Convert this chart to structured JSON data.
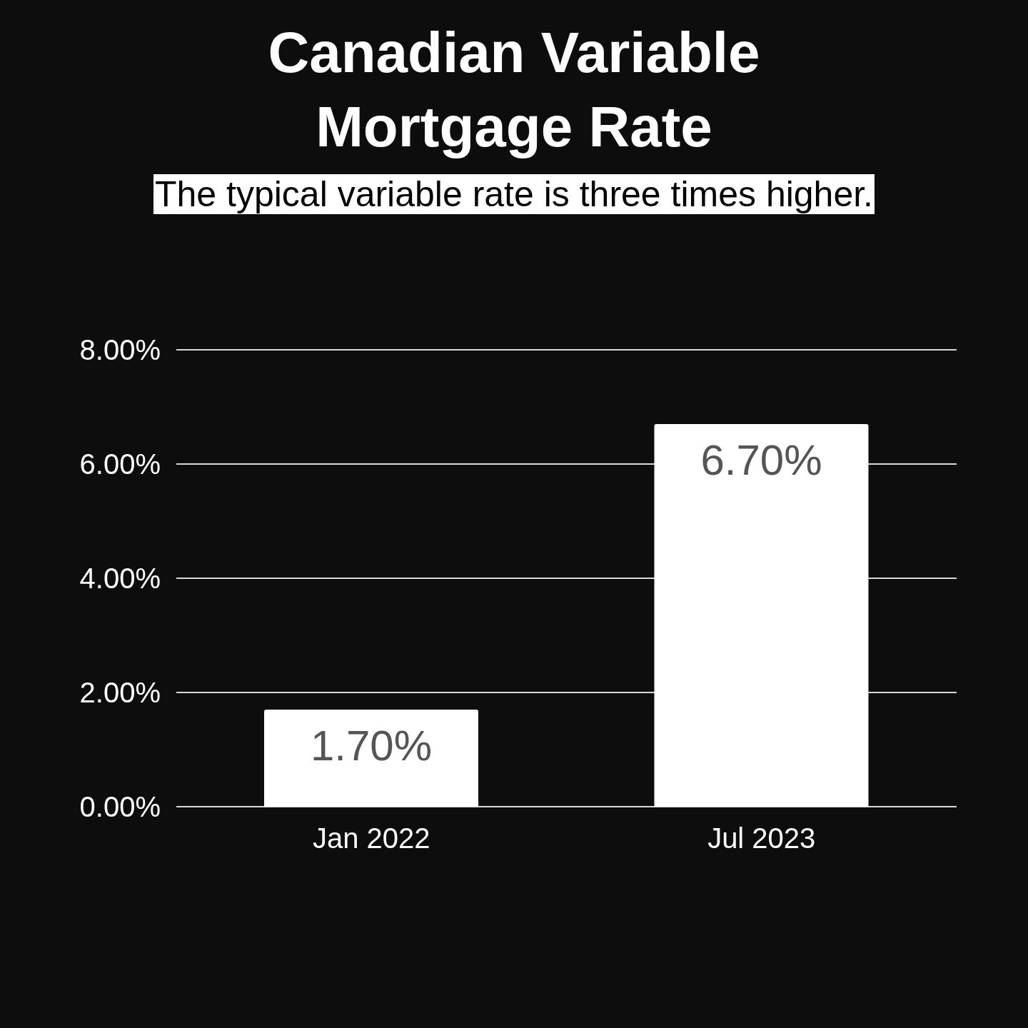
{
  "chart_data": {
    "type": "bar",
    "title": "Canadian Variable Mortgage Rate",
    "subtitle": "The typical variable rate is three times higher.",
    "categories": [
      "Jan 2022",
      "Jul 2023"
    ],
    "values": [
      1.7,
      6.7
    ],
    "color": "#ffffff",
    "value_labels": [
      "1.70%",
      "6.70%"
    ],
    "ylim": [
      0,
      8
    ],
    "yticks": [
      {
        "value": 0,
        "label": "0.00%"
      },
      {
        "value": 2,
        "label": "2.00%"
      },
      {
        "value": 4,
        "label": "4.00%"
      },
      {
        "value": 6,
        "label": "6.00%"
      },
      {
        "value": 8,
        "label": "8.00%"
      }
    ],
    "grid": "y"
  }
}
